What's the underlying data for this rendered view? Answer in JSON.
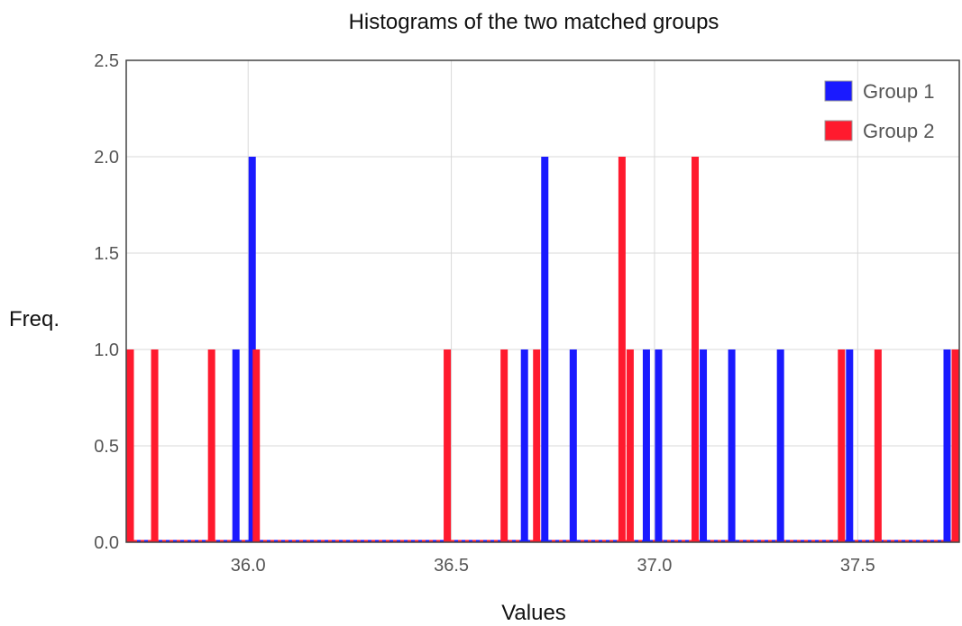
{
  "chart_data": {
    "type": "bar",
    "title": "Histograms of the two matched groups",
    "xlabel": "Values",
    "ylabel": "Freq.",
    "xlim": [
      35.7,
      37.75
    ],
    "ylim": [
      0,
      2.5
    ],
    "x_ticks": [
      "36.0",
      "36.5",
      "37.0",
      "37.5"
    ],
    "x_tick_values": [
      36.0,
      36.5,
      37.0,
      37.5
    ],
    "y_ticks": [
      "0.0",
      "0.5",
      "1.0",
      "1.5",
      "2.0",
      "2.5"
    ],
    "y_tick_values": [
      0,
      0.5,
      1.0,
      1.5,
      2.0,
      2.5
    ],
    "grid": true,
    "legend_position": "top-right",
    "series": [
      {
        "name": "Group 1",
        "color": "#1a1aff",
        "x": [
          35.97,
          36.01,
          36.68,
          36.73,
          36.8,
          36.98,
          37.01,
          37.12,
          37.19,
          37.31,
          37.48,
          37.72
        ],
        "values": [
          1,
          2,
          1,
          2,
          1,
          1,
          1,
          1,
          1,
          1,
          1,
          1
        ]
      },
      {
        "name": "Group 2",
        "color": "#ff1a2e",
        "x": [
          35.71,
          35.77,
          35.91,
          36.02,
          36.49,
          36.63,
          36.71,
          36.92,
          36.94,
          37.1,
          37.46,
          37.55,
          37.74
        ],
        "values": [
          1,
          1,
          1,
          1,
          1,
          1,
          1,
          2,
          1,
          2,
          1,
          1,
          1
        ]
      }
    ]
  }
}
